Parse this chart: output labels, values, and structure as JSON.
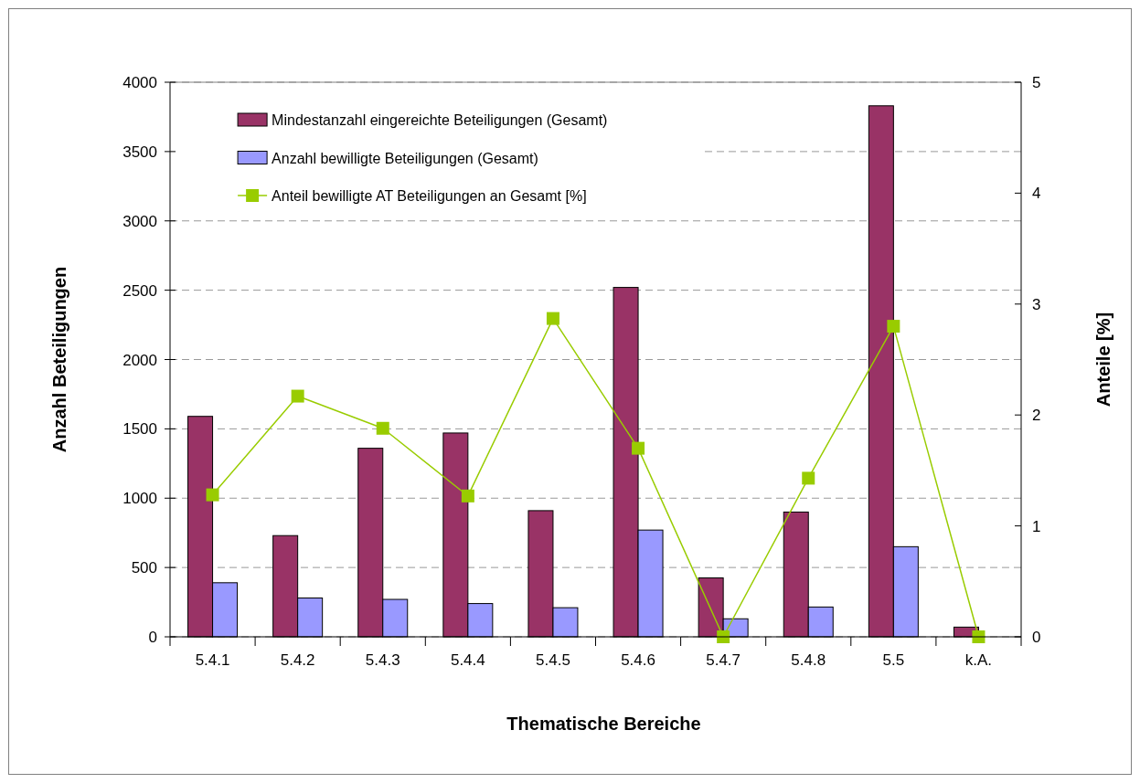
{
  "chart_data": {
    "type": "bar",
    "xlabel": "Thematische Bereiche",
    "ylabel": "Anzahl Beteiligungen",
    "y2label": "Anteile [%]",
    "categories": [
      "5.4.1",
      "5.4.2",
      "5.4.3",
      "5.4.4",
      "5.4.5",
      "5.4.6",
      "5.4.7",
      "5.4.8",
      "5.5",
      "k.A."
    ],
    "series": [
      {
        "name": "Mindestanzahl eingereichte Beteiligungen (Gesamt)",
        "color": "#993366",
        "values": [
          1590,
          730,
          1360,
          1470,
          910,
          2520,
          425,
          900,
          3830,
          70
        ]
      },
      {
        "name": "Anzahl bewilligte Beteiligungen (Gesamt)",
        "color": "#9999ff",
        "values": [
          390,
          280,
          270,
          240,
          210,
          770,
          130,
          215,
          650,
          0
        ]
      },
      {
        "name": "Anteil bewilligte AT Beteiligungen an Gesamt [%]",
        "type": "line",
        "axis": "y2",
        "color": "#99cc00",
        "values": [
          1.28,
          2.17,
          1.88,
          1.27,
          2.87,
          1.7,
          0,
          1.43,
          2.8,
          0
        ]
      }
    ],
    "ylim": [
      0,
      4000
    ],
    "yticks": [
      0,
      500,
      1000,
      1500,
      2000,
      2500,
      3000,
      3500,
      4000
    ],
    "y2lim": [
      0,
      5
    ],
    "y2ticks": [
      0,
      1,
      2,
      3,
      4,
      5
    ],
    "grid": "y",
    "legend": "top left",
    "marker": "square",
    "line_style": "solid"
  }
}
